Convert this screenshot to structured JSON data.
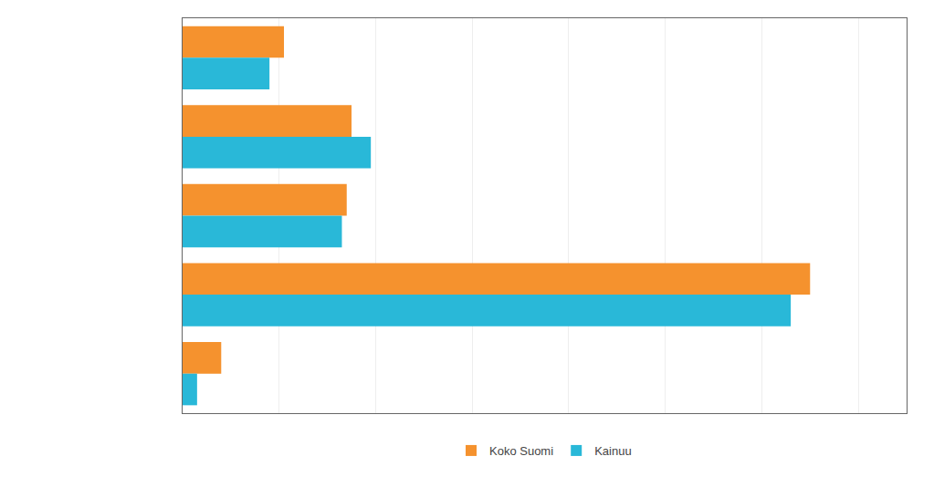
{
  "chart_data": {
    "type": "bar",
    "orientation": "horizontal",
    "categories": [
      null,
      null,
      null,
      null,
      null
    ],
    "series": [
      {
        "name": "Koko Suomi",
        "color": "#F5922E",
        "values": [
          10.5,
          17.5,
          17.0,
          65.0,
          4.0
        ]
      },
      {
        "name": "Kainuu",
        "color": "#29B8D8",
        "values": [
          9.0,
          19.5,
          16.5,
          63.0,
          1.5
        ]
      }
    ],
    "xlim": [
      0,
      75
    ],
    "xticks": [
      0,
      10,
      20,
      30,
      40,
      50,
      60,
      70
    ],
    "grid": true,
    "legend": "bottom",
    "tick_labels": false
  }
}
